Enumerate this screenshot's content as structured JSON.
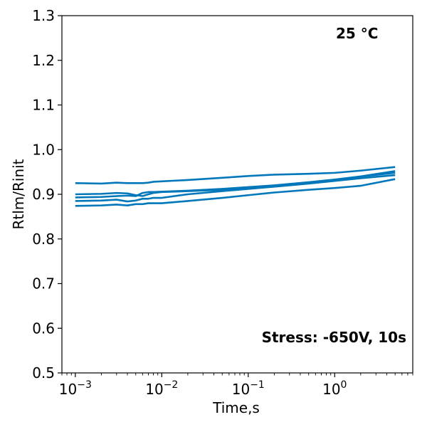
{
  "chart_data": {
    "type": "line",
    "xscale": "log",
    "xlabel": "Time,s",
    "ylabel": "Rtlm/Rinit",
    "xlim": [
      0.0007,
      8
    ],
    "ylim": [
      0.5,
      1.3
    ],
    "x_ticks": [
      {
        "value": 0.001,
        "mantissa": "10",
        "exp": "−3"
      },
      {
        "value": 0.01,
        "mantissa": "10",
        "exp": "−2"
      },
      {
        "value": 0.1,
        "mantissa": "10",
        "exp": "−1"
      },
      {
        "value": 1,
        "mantissa": "10",
        "exp": "0"
      }
    ],
    "y_ticks": [
      {
        "value": 0.5,
        "label": "0.5"
      },
      {
        "value": 0.6,
        "label": "0.6"
      },
      {
        "value": 0.7,
        "label": "0.7"
      },
      {
        "value": 0.8,
        "label": "0.8"
      },
      {
        "value": 0.9,
        "label": "0.9"
      },
      {
        "value": 1.0,
        "label": "1.0"
      },
      {
        "value": 1.1,
        "label": "1.1"
      },
      {
        "value": 1.2,
        "label": "1.2"
      },
      {
        "value": 1.3,
        "label": "1.3"
      }
    ],
    "annotations": {
      "temperature": "25 °C",
      "stress": "Stress: -650V, 10s"
    },
    "grid": false,
    "line_color": "#0077bb",
    "series": [
      {
        "x": [
          0.001,
          0.002,
          0.003,
          0.004,
          0.005,
          0.006,
          0.007,
          0.008,
          0.01,
          0.02,
          0.05,
          0.1,
          0.2,
          0.5,
          1,
          2,
          5
        ],
        "y": [
          0.925,
          0.924,
          0.926,
          0.925,
          0.925,
          0.925,
          0.926,
          0.928,
          0.929,
          0.932,
          0.937,
          0.941,
          0.944,
          0.946,
          0.948,
          0.953,
          0.961
        ]
      },
      {
        "x": [
          0.001,
          0.002,
          0.003,
          0.004,
          0.005,
          0.006,
          0.007,
          0.008,
          0.01,
          0.02,
          0.05,
          0.1,
          0.2,
          0.5,
          1,
          2,
          5
        ],
        "y": [
          0.9,
          0.901,
          0.903,
          0.902,
          0.898,
          0.896,
          0.9,
          0.903,
          0.905,
          0.907,
          0.91,
          0.914,
          0.918,
          0.925,
          0.932,
          0.94,
          0.952
        ]
      },
      {
        "x": [
          0.001,
          0.002,
          0.003,
          0.004,
          0.005,
          0.006,
          0.007,
          0.008,
          0.01,
          0.02,
          0.05,
          0.1,
          0.2,
          0.5,
          1,
          2,
          5
        ],
        "y": [
          0.893,
          0.894,
          0.896,
          0.897,
          0.896,
          0.903,
          0.905,
          0.905,
          0.906,
          0.908,
          0.912,
          0.916,
          0.92,
          0.927,
          0.933,
          0.94,
          0.948
        ]
      },
      {
        "x": [
          0.001,
          0.002,
          0.003,
          0.004,
          0.005,
          0.006,
          0.007,
          0.008,
          0.01,
          0.02,
          0.05,
          0.1,
          0.2,
          0.5,
          1,
          2,
          5
        ],
        "y": [
          0.885,
          0.886,
          0.888,
          0.884,
          0.886,
          0.89,
          0.89,
          0.892,
          0.892,
          0.9,
          0.907,
          0.912,
          0.917,
          0.924,
          0.93,
          0.936,
          0.943
        ]
      },
      {
        "x": [
          0.001,
          0.002,
          0.003,
          0.004,
          0.005,
          0.006,
          0.007,
          0.008,
          0.01,
          0.02,
          0.05,
          0.1,
          0.2,
          0.5,
          1,
          2,
          5
        ],
        "y": [
          0.874,
          0.875,
          0.877,
          0.875,
          0.878,
          0.878,
          0.88,
          0.88,
          0.88,
          0.885,
          0.892,
          0.898,
          0.904,
          0.91,
          0.914,
          0.919,
          0.934
        ]
      }
    ]
  }
}
